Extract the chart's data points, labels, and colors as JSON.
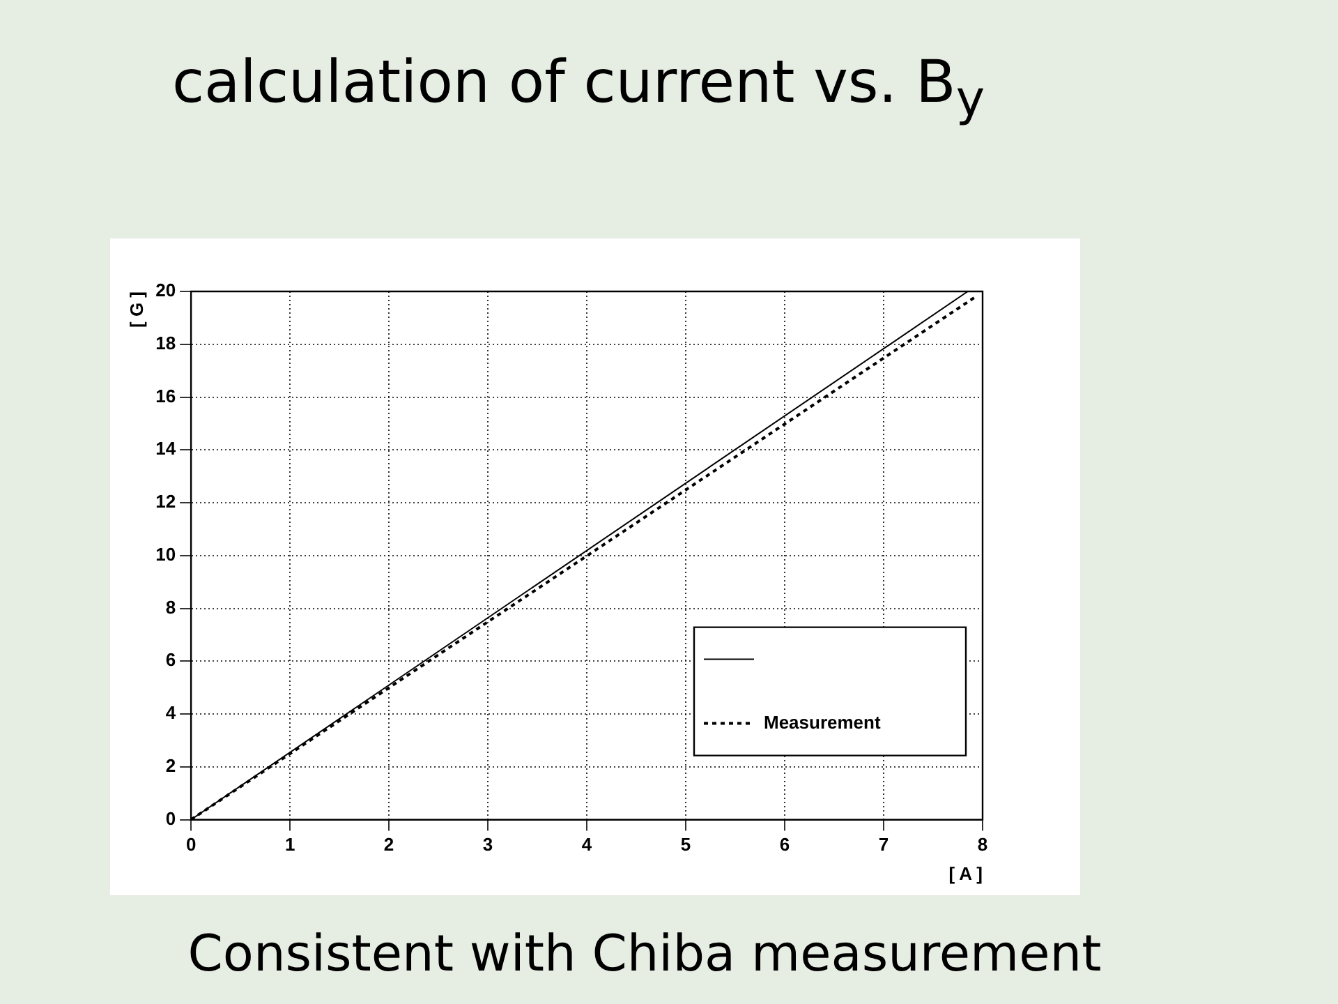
{
  "chart_data": {
    "type": "line",
    "title": "calculation of current vs. B$_{y}$",
    "xlabel": "[ A ]",
    "ylabel": "[ G ]",
    "xlim": [
      0,
      8
    ],
    "xticks": [
      0,
      1,
      2,
      3,
      4,
      5,
      6,
      7,
      8
    ],
    "ylim": [
      0,
      20
    ],
    "yticks": [
      0,
      2,
      4,
      6,
      8,
      10,
      12,
      14,
      16,
      18,
      20
    ],
    "grid": true,
    "legend": "bottom right",
    "marker": "none",
    "series": [
      {
        "color": "#000000",
        "x": [
          0,
          7.85
        ],
        "values": [
          0,
          20
        ],
        "line_style": "solid"
      },
      {
        "name": "Measurement",
        "color": "#000000",
        "x": [
          0,
          7.93
        ],
        "values": [
          0,
          19.8
        ],
        "line_style": "dotted"
      }
    ],
    "annotations": [
      "Consistent with Chiba measurement"
    ]
  }
}
